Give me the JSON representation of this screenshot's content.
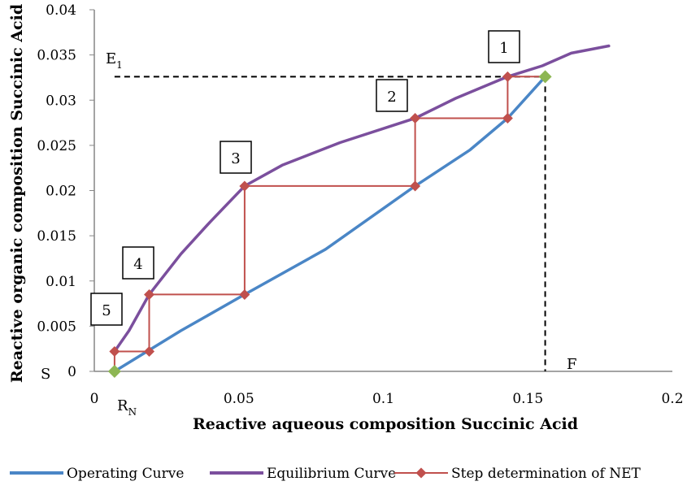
{
  "chart_data": {
    "type": "line",
    "xlabel": "Reactive aqueous composition Succinic Acid",
    "ylabel": "Reactive organic composition Succinic Acid",
    "xlim": [
      0,
      0.2
    ],
    "ylim": [
      0,
      0.04
    ],
    "x_ticks": [
      "0",
      "0.05",
      "0.1",
      "0.15",
      "0.2"
    ],
    "y_ticks": [
      "0",
      "0.005",
      "0.01",
      "0.015",
      "0.02",
      "0.025",
      "0.03",
      "0.035",
      "0.04"
    ],
    "grid": false,
    "legend_position": "bottom",
    "series": [
      {
        "name": "Operating Curve",
        "color": "#4a86c6",
        "points": [
          [
            0.007,
            0
          ],
          [
            0.03,
            0.0045
          ],
          [
            0.052,
            0.0085
          ],
          [
            0.08,
            0.0135
          ],
          [
            0.111,
            0.0205
          ],
          [
            0.13,
            0.0245
          ],
          [
            0.143,
            0.028
          ],
          [
            0.156,
            0.0326
          ]
        ]
      },
      {
        "name": "Equilibrium Curve",
        "color": "#7b4f9d",
        "points": [
          [
            0.007,
            0.0022
          ],
          [
            0.012,
            0.0045
          ],
          [
            0.019,
            0.0085
          ],
          [
            0.03,
            0.013
          ],
          [
            0.04,
            0.0165
          ],
          [
            0.052,
            0.0205
          ],
          [
            0.065,
            0.0228
          ],
          [
            0.085,
            0.0253
          ],
          [
            0.111,
            0.028
          ],
          [
            0.125,
            0.0302
          ],
          [
            0.143,
            0.0326
          ],
          [
            0.155,
            0.0338
          ],
          [
            0.165,
            0.0352
          ],
          [
            0.178,
            0.036
          ]
        ]
      },
      {
        "name": "Step determination of NET",
        "color": "#c0504d",
        "points": [
          [
            0.156,
            0.0326
          ],
          [
            0.143,
            0.0326
          ],
          [
            0.143,
            0.028
          ],
          [
            0.111,
            0.028
          ],
          [
            0.111,
            0.0205
          ],
          [
            0.052,
            0.0205
          ],
          [
            0.052,
            0.0085
          ],
          [
            0.019,
            0.0085
          ],
          [
            0.019,
            0.0022
          ],
          [
            0.007,
            0.0022
          ],
          [
            0.007,
            0
          ]
        ]
      }
    ],
    "endpoints": {
      "color": "#8db653",
      "points": [
        [
          0.156,
          0.0326
        ],
        [
          0.007,
          0
        ]
      ]
    },
    "reference_lines": [
      {
        "label": "E1",
        "y": 0.0326
      },
      {
        "label": "F",
        "x": 0.156
      }
    ],
    "annotations": {
      "e_main": "E",
      "e_sub": "1",
      "f": "F",
      "s": "S",
      "r_main": "R",
      "r_sub": "N"
    },
    "stage_labels": [
      {
        "text": "1",
        "x": 0.143,
        "y": 0.0326
      },
      {
        "text": "2",
        "x": 0.111,
        "y": 0.028
      },
      {
        "text": "3",
        "x": 0.052,
        "y": 0.0205
      },
      {
        "text": "4",
        "x": 0.019,
        "y": 0.0085
      },
      {
        "text": "5",
        "x": 0.007,
        "y": 0.0022
      }
    ]
  }
}
